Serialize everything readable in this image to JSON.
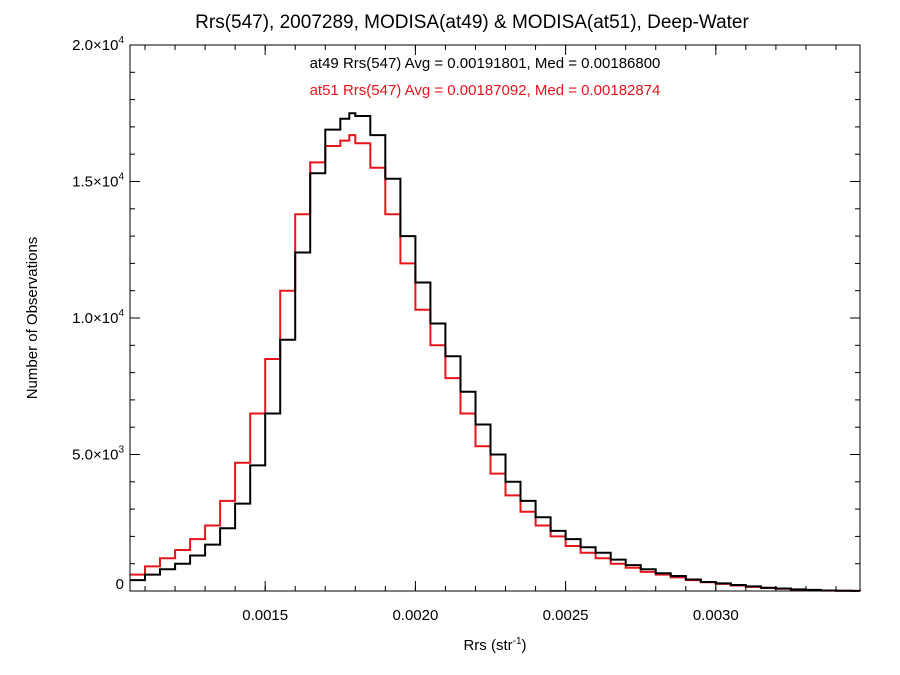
{
  "chart_data": {
    "type": "line",
    "step": true,
    "title": "Rrs(547), 2007289, MODISA(at49) & MODISA(at51), Deep-Water",
    "xlabel": "Rrs (str",
    "xlabel_sup": "-1",
    "xlabel_suffix": ")",
    "ylabel": "Number of Observations",
    "xlim": [
      0.00105,
      0.00348
    ],
    "ylim": [
      0,
      20000
    ],
    "grid": false,
    "x_ticks": [
      {
        "value": 0.0015,
        "label": "0.0015"
      },
      {
        "value": 0.002,
        "label": "0.0020"
      },
      {
        "value": 0.0025,
        "label": "0.0025"
      },
      {
        "value": 0.003,
        "label": "0.0030"
      }
    ],
    "y_ticks": [
      {
        "value": 0,
        "base": "0",
        "exp": ""
      },
      {
        "value": 5000,
        "base": "5.0×10",
        "exp": "3"
      },
      {
        "value": 10000,
        "base": "1.0×10",
        "exp": "4"
      },
      {
        "value": 15000,
        "base": "1.5×10",
        "exp": "4"
      },
      {
        "value": 20000,
        "base": "2.0×10",
        "exp": "4"
      }
    ],
    "legend": [
      {
        "text": "at49 Rrs(547) Avg = 0.00191801, Med = 0.00186800",
        "color": "#000000"
      },
      {
        "text": "at51 Rrs(547) Avg = 0.00187092, Med = 0.00182874",
        "color": "#e8141b"
      }
    ],
    "series": [
      {
        "color": "#000000",
        "x": [
          0.00105,
          0.0011,
          0.00115,
          0.0012,
          0.00125,
          0.0013,
          0.00135,
          0.0014,
          0.00145,
          0.0015,
          0.00155,
          0.0016,
          0.00165,
          0.0017,
          0.00175,
          0.00178,
          0.0018,
          0.00185,
          0.0019,
          0.00195,
          0.002,
          0.00205,
          0.0021,
          0.00215,
          0.0022,
          0.00225,
          0.0023,
          0.00235,
          0.0024,
          0.00245,
          0.0025,
          0.00255,
          0.0026,
          0.00265,
          0.0027,
          0.00275,
          0.0028,
          0.00285,
          0.0029,
          0.00295,
          0.003,
          0.00305,
          0.0031,
          0.00315,
          0.0032,
          0.00325,
          0.0033,
          0.00335,
          0.0034,
          0.00345,
          0.00348
        ],
        "y": [
          400,
          600,
          800,
          1000,
          1300,
          1700,
          2300,
          3200,
          4600,
          6500,
          9200,
          12400,
          15300,
          16900,
          17300,
          17500,
          17400,
          16700,
          15100,
          13000,
          11300,
          9800,
          8600,
          7300,
          6100,
          5000,
          4000,
          3300,
          2700,
          2200,
          1900,
          1600,
          1400,
          1150,
          950,
          800,
          650,
          550,
          420,
          330,
          280,
          220,
          170,
          120,
          90,
          60,
          40,
          20,
          10,
          5,
          0
        ]
      },
      {
        "color": "#e8141b",
        "x": [
          0.00105,
          0.0011,
          0.00115,
          0.0012,
          0.00125,
          0.0013,
          0.00135,
          0.0014,
          0.00145,
          0.0015,
          0.00155,
          0.0016,
          0.00165,
          0.0017,
          0.00175,
          0.00178,
          0.0018,
          0.00185,
          0.0019,
          0.00195,
          0.002,
          0.00205,
          0.0021,
          0.00215,
          0.0022,
          0.00225,
          0.0023,
          0.00235,
          0.0024,
          0.00245,
          0.0025,
          0.00255,
          0.0026,
          0.00265,
          0.0027,
          0.00275,
          0.0028,
          0.00285,
          0.0029,
          0.00295,
          0.003,
          0.00305,
          0.0031,
          0.00315,
          0.0032,
          0.00325,
          0.0033,
          0.00335,
          0.0034,
          0.00345,
          0.00348
        ],
        "y": [
          600,
          900,
          1200,
          1500,
          1900,
          2400,
          3300,
          4700,
          6500,
          8500,
          11000,
          13800,
          15700,
          16300,
          16500,
          16700,
          16400,
          15500,
          13800,
          12000,
          10300,
          9000,
          7800,
          6500,
          5300,
          4300,
          3500,
          2900,
          2400,
          2000,
          1650,
          1400,
          1200,
          1000,
          850,
          700,
          600,
          500,
          400,
          320,
          260,
          200,
          150,
          110,
          80,
          50,
          30,
          15,
          8,
          4,
          0
        ]
      }
    ]
  }
}
